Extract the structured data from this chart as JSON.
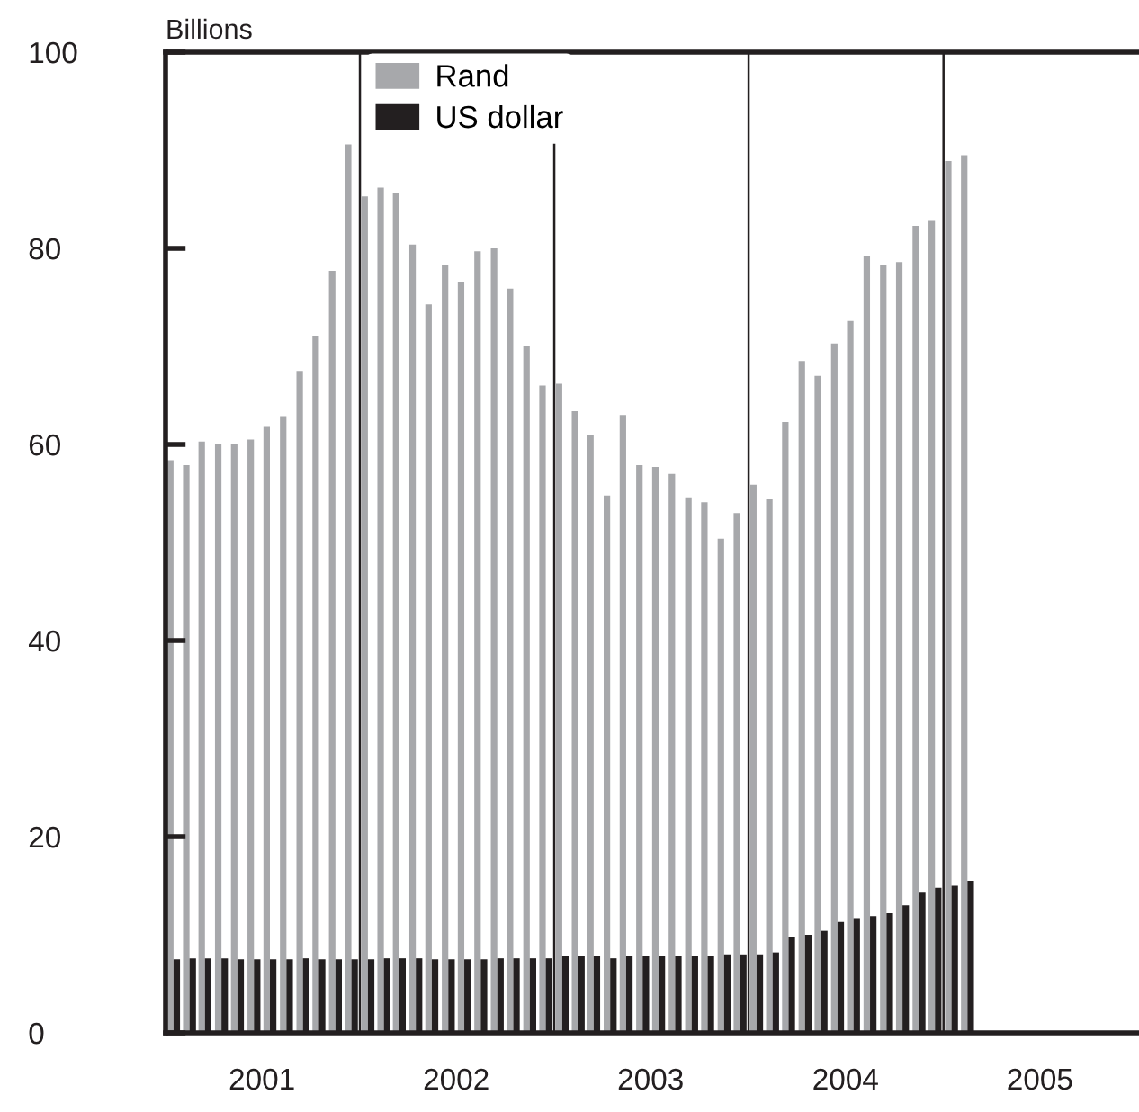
{
  "chart_data": {
    "type": "bar",
    "ylabel": "Billions",
    "x": [
      "2001-01-16",
      "2001-02-15",
      "2001-03-16",
      "2001-04-16",
      "2001-05-16",
      "2001-06-16",
      "2001-07-16",
      "2001-08-16",
      "2001-09-16",
      "2001-10-16",
      "2001-11-16",
      "2001-12-16",
      "2002-01-16",
      "2002-02-15",
      "2002-03-16",
      "2002-04-16",
      "2002-05-16",
      "2002-06-16",
      "2002-07-16",
      "2002-08-16",
      "2002-09-16",
      "2002-10-16",
      "2002-11-16",
      "2002-12-16",
      "2003-01-16",
      "2003-02-15",
      "2003-03-16",
      "2003-04-16",
      "2003-05-16",
      "2003-06-16",
      "2003-07-16",
      "2003-08-16",
      "2003-09-16",
      "2003-10-16",
      "2003-11-16",
      "2003-12-16",
      "2004-01-16",
      "2004-02-15",
      "2004-03-16",
      "2004-04-16",
      "2004-05-16",
      "2004-06-16",
      "2004-07-16",
      "2004-08-16",
      "2004-09-16",
      "2004-10-16",
      "2004-11-16",
      "2004-12-16",
      "2005-01-16",
      "2005-02-15"
    ],
    "series": [
      {
        "name": "Rand",
        "color": "#a7a8ab",
        "values": [
          58.4,
          57.9,
          60.3,
          60.1,
          60.1,
          60.5,
          61.8,
          62.9,
          67.5,
          71.0,
          77.7,
          90.6,
          85.3,
          86.2,
          85.6,
          80.4,
          74.3,
          78.3,
          76.6,
          79.7,
          80.0,
          75.9,
          70.0,
          66.0,
          66.2,
          63.4,
          61.0,
          54.8,
          63.0,
          57.9,
          57.7,
          57.0,
          54.6,
          54.1,
          50.4,
          53.0,
          55.9,
          54.4,
          62.3,
          68.5,
          67.0,
          70.3,
          72.6,
          79.2,
          78.3,
          78.6,
          82.3,
          82.8,
          88.9,
          89.5
        ]
      },
      {
        "name": "US dollar",
        "color": "#231f20",
        "values": [
          7.5,
          7.6,
          7.6,
          7.6,
          7.5,
          7.5,
          7.5,
          7.5,
          7.6,
          7.5,
          7.5,
          7.5,
          7.5,
          7.6,
          7.6,
          7.6,
          7.5,
          7.5,
          7.5,
          7.5,
          7.6,
          7.6,
          7.6,
          7.6,
          7.8,
          7.8,
          7.8,
          7.6,
          7.8,
          7.8,
          7.8,
          7.8,
          7.8,
          7.8,
          8.0,
          8.0,
          8.0,
          8.2,
          9.8,
          10.0,
          10.4,
          11.3,
          11.7,
          11.9,
          12.2,
          13.0,
          14.3,
          14.8,
          15.0,
          15.5
        ]
      }
    ],
    "xlim": [
      "2001-01",
      "2006-01"
    ],
    "xticks": [
      {
        "value": "2001-07",
        "label": "2001"
      },
      {
        "value": "2002-07",
        "label": "2002"
      },
      {
        "value": "2003-07",
        "label": "2003"
      },
      {
        "value": "2004-07",
        "label": "2004"
      },
      {
        "value": "2005-07",
        "label": "2005"
      }
    ],
    "ylim": [
      0,
      100
    ],
    "yticks": [
      0,
      20,
      40,
      60,
      80,
      100
    ],
    "ref_lines": [
      {
        "axis": "x",
        "value": "2002-01",
        "color": "#231f20"
      },
      {
        "axis": "x",
        "value": "2003-01",
        "color": "#231f20"
      },
      {
        "axis": "x",
        "value": "2004-01",
        "color": "#231f20"
      },
      {
        "axis": "x",
        "value": "2005-01",
        "color": "#231f20"
      }
    ],
    "legend": "top",
    "grid": false
  }
}
